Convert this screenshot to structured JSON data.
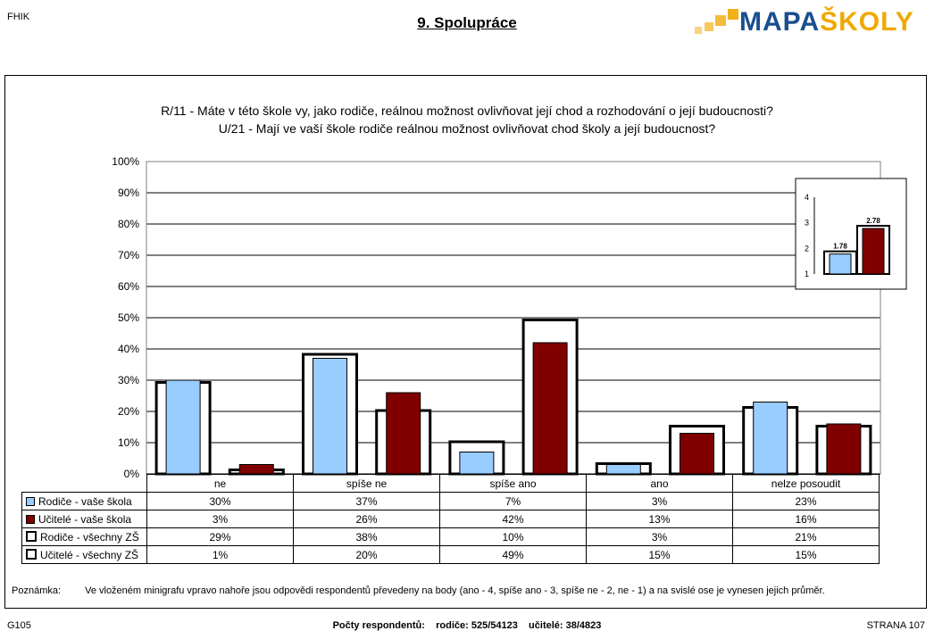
{
  "header": {
    "corner_code": "FHIK",
    "title": "9. Spolupráce",
    "logo": "MAPAŠKOLY"
  },
  "colors": {
    "parents": "#99ccff",
    "teachers": "#800000",
    "outline": "#000000",
    "logo_blue": "#1a4f8f",
    "logo_yellow": "#f0a800"
  },
  "question": {
    "line1": "R/11 - Máte v této škole vy, jako rodiče, reálnou možnost ovlivňovat její chod a rozhodování o její budoucnosti?",
    "line2": "U/21 - Mají ve vaší škole rodiče reálnou možnost ovlivňovat chod školy a její budoucnost?"
  },
  "chart_data": [
    {
      "type": "bar",
      "categories": [
        "ne",
        "spíše ne",
        "spíše ano",
        "ano",
        "nelze posoudit"
      ],
      "series": [
        {
          "name": "Rodiče - vaše škola",
          "values": [
            30,
            37,
            7,
            3,
            23
          ],
          "labels": [
            "30%",
            "37%",
            "7%",
            "3%",
            "23%"
          ]
        },
        {
          "name": "Učitelé - vaše škola",
          "values": [
            3,
            26,
            42,
            13,
            16
          ],
          "labels": [
            "3%",
            "26%",
            "42%",
            "13%",
            "16%"
          ]
        },
        {
          "name": "Rodiče - všechny ZŠ",
          "values": [
            29,
            38,
            10,
            3,
            21
          ],
          "labels": [
            "29%",
            "38%",
            "10%",
            "3%",
            "21%"
          ]
        },
        {
          "name": "Učitelé - všechny ZŠ",
          "values": [
            1,
            20,
            49,
            15,
            15
          ],
          "labels": [
            "1%",
            "20%",
            "49%",
            "15%",
            "15%"
          ]
        }
      ],
      "yticks": [
        "0%",
        "10%",
        "20%",
        "30%",
        "40%",
        "50%",
        "60%",
        "70%",
        "80%",
        "90%",
        "100%"
      ],
      "ylim": [
        0,
        100
      ],
      "grid": true
    },
    {
      "type": "bar",
      "categories": [
        "Rodiče",
        "Učitelé"
      ],
      "values": [
        1.78,
        2.78
      ],
      "data_labels": [
        "1.78",
        "2.78"
      ],
      "yticks": [
        "1",
        "2",
        "3",
        "4"
      ],
      "ylim": [
        1,
        4
      ],
      "legend": "none"
    }
  ],
  "note": {
    "label": "Poznámka:",
    "text": "Ve vloženém minigrafu vpravo nahoře jsou odpovědi respondentů převedeny na body (ano - 4, spíše ano - 3, spíše ne - 2, ne - 1) a na svislé ose je vynesen jejich průměr."
  },
  "footer": {
    "left": "G105",
    "center": "Počty respondentů:    rodiče: 525/54123    učitelé: 38/4823",
    "right": "STRANA  107"
  }
}
